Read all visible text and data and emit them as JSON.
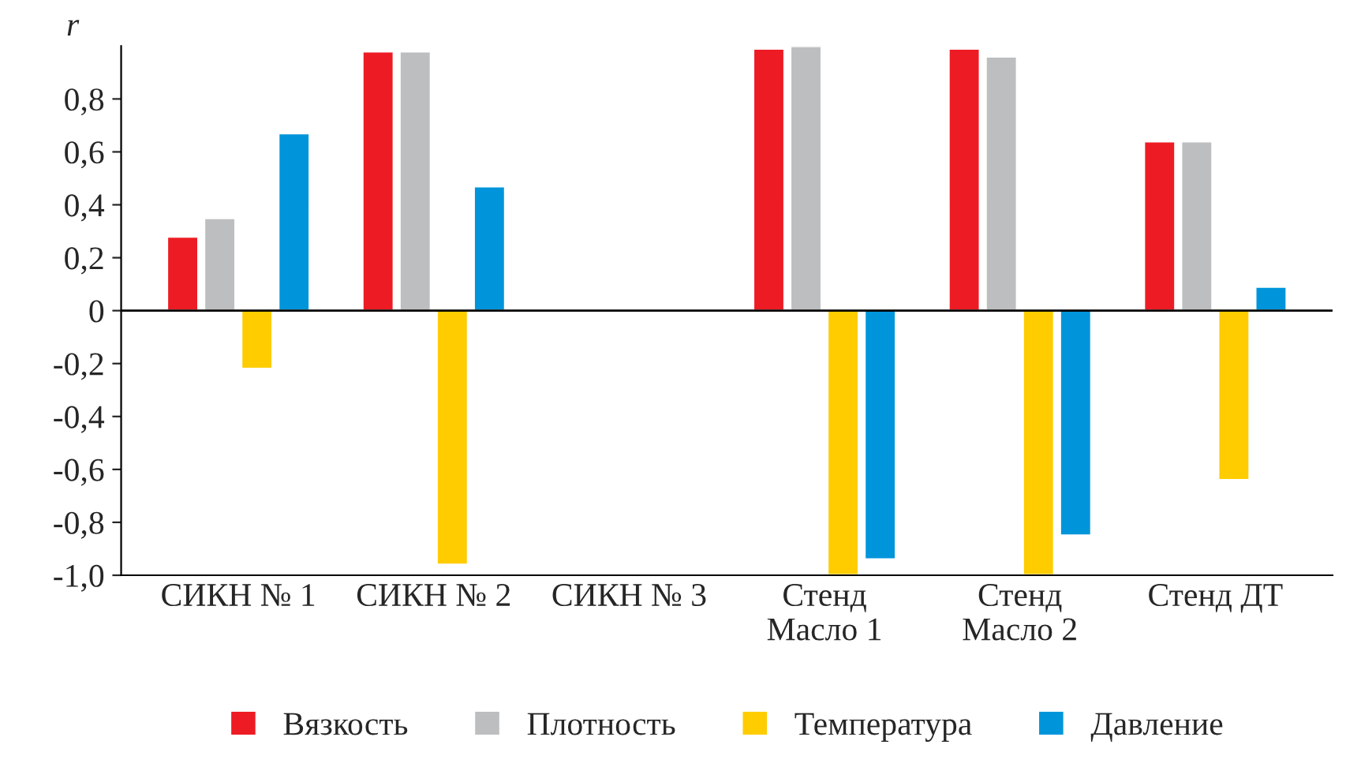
{
  "chart_data": {
    "type": "bar",
    "ylabel": "r",
    "categories": [
      "СИКН № 1",
      "СИКН № 2",
      "СИКН № 3",
      "Стенд\nМасло 1",
      "Стенд\nМасло 2",
      "Стенд ДТ"
    ],
    "series": [
      {
        "name": "Вязкость",
        "color": "#ed1c24",
        "values": [
          0.28,
          0.98,
          null,
          0.99,
          0.99,
          0.64
        ]
      },
      {
        "name": "Плотность",
        "color": "#bcbec0",
        "values": [
          0.35,
          0.98,
          null,
          1.0,
          0.96,
          0.64
        ]
      },
      {
        "name": "Температура",
        "color": "#ffcc00",
        "values": [
          -0.22,
          -0.96,
          null,
          -1.0,
          -1.0,
          -0.64
        ]
      },
      {
        "name": "Давление",
        "color": "#0095da",
        "values": [
          0.67,
          0.47,
          null,
          -0.94,
          -0.85,
          0.09
        ]
      }
    ],
    "ylim": [
      -1.0,
      1.0
    ],
    "yticks": [
      {
        "value": -1.0,
        "label": "-1,0"
      },
      {
        "value": -0.8,
        "label": "-0,8"
      },
      {
        "value": -0.6,
        "label": "-0,6"
      },
      {
        "value": -0.4,
        "label": "-0,4"
      },
      {
        "value": -0.2,
        "label": "-0,2"
      },
      0,
      {
        "value": 0.2,
        "label": "0,2"
      },
      {
        "value": 0.4,
        "label": "0,4"
      },
      {
        "value": 0.6,
        "label": "0,6"
      },
      {
        "value": 0.8,
        "label": "0,8"
      }
    ],
    "ref_lines": [
      {
        "axis": "y",
        "value": 0,
        "color": "#000000"
      }
    ],
    "grid": false,
    "legend": "bottom"
  }
}
